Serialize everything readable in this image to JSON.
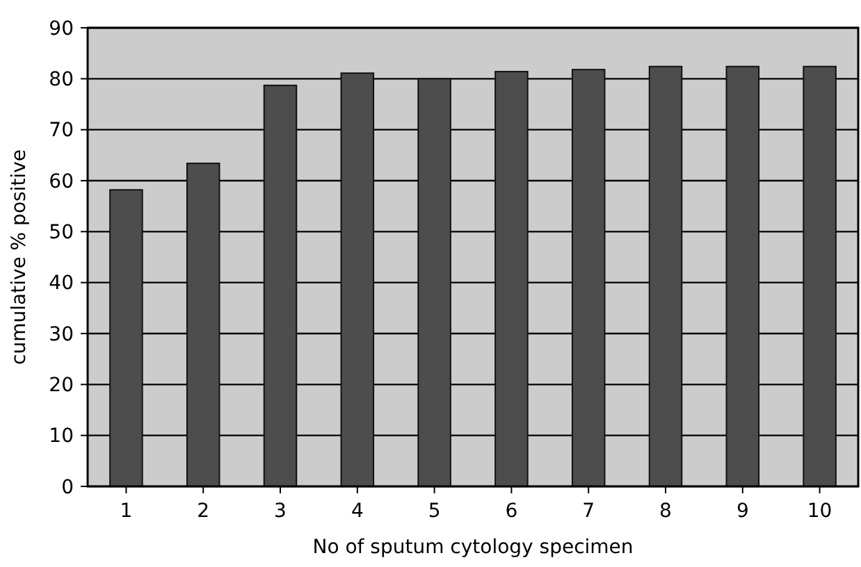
{
  "chart_data": {
    "type": "bar",
    "xlabel": "No of sputum cytology specimen",
    "ylabel": "cumulative % positive",
    "categories": [
      "1",
      "2",
      "3",
      "4",
      "5",
      "6",
      "7",
      "8",
      "9",
      "10"
    ],
    "values": [
      58.2,
      63.4,
      78.7,
      81.1,
      80,
      81.4,
      81.8,
      82.4,
      82.4,
      82.4
    ],
    "color": "#4d4d4d",
    "ylim": [
      0,
      90
    ],
    "yticks": [
      0,
      10,
      20,
      30,
      40,
      50,
      60,
      70,
      80,
      90
    ],
    "grid": "y"
  }
}
